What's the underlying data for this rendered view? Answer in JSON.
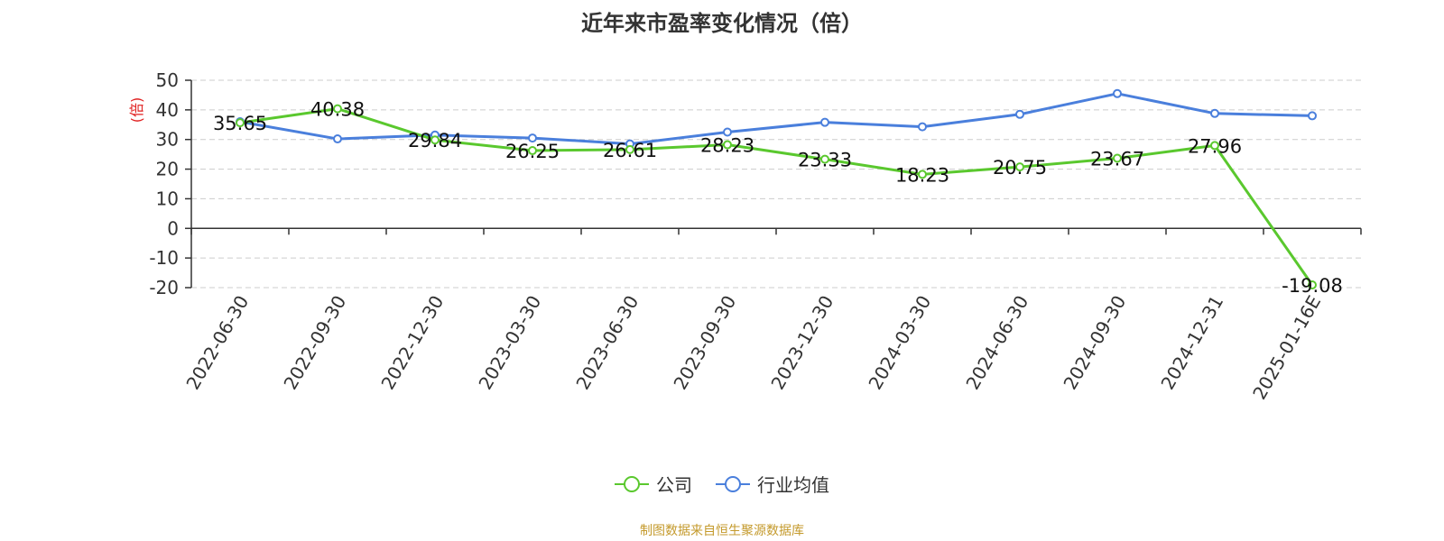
{
  "chart_data": {
    "type": "line",
    "title": "近年来市盈率变化情况（倍）",
    "ylabel": "(倍)",
    "xlabel": "",
    "categories": [
      "2022-06-30",
      "2022-09-30",
      "2022-12-30",
      "2023-03-30",
      "2023-06-30",
      "2023-09-30",
      "2023-12-30",
      "2024-03-30",
      "2024-06-30",
      "2024-09-30",
      "2024-12-31",
      "2025-01-16E"
    ],
    "ylim": [
      -20,
      50
    ],
    "yticks": [
      50,
      40,
      30,
      20,
      10,
      0,
      -10,
      -20
    ],
    "grid": true,
    "legend_position": "bottom",
    "series": [
      {
        "name": "公司",
        "color": "#5ac82e",
        "values": [
          35.65,
          40.38,
          29.84,
          26.25,
          26.61,
          28.23,
          23.33,
          18.23,
          20.75,
          23.67,
          27.96,
          -19.08
        ],
        "labels": [
          "35.65",
          "40.38",
          "29.84",
          "26.25",
          "26.61",
          "28.23",
          "23.33",
          "18.23",
          "20.75",
          "23.67",
          "27.96",
          "-19.08"
        ]
      },
      {
        "name": "行业均值",
        "color": "#4a7fdc",
        "values": [
          36.0,
          30.2,
          31.5,
          30.5,
          28.5,
          32.5,
          35.8,
          34.3,
          38.5,
          45.5,
          38.8,
          38.0
        ]
      }
    ]
  },
  "legend": {
    "company": "公司",
    "industry": "行业均值"
  },
  "source": "制图数据来自恒生聚源数据库"
}
